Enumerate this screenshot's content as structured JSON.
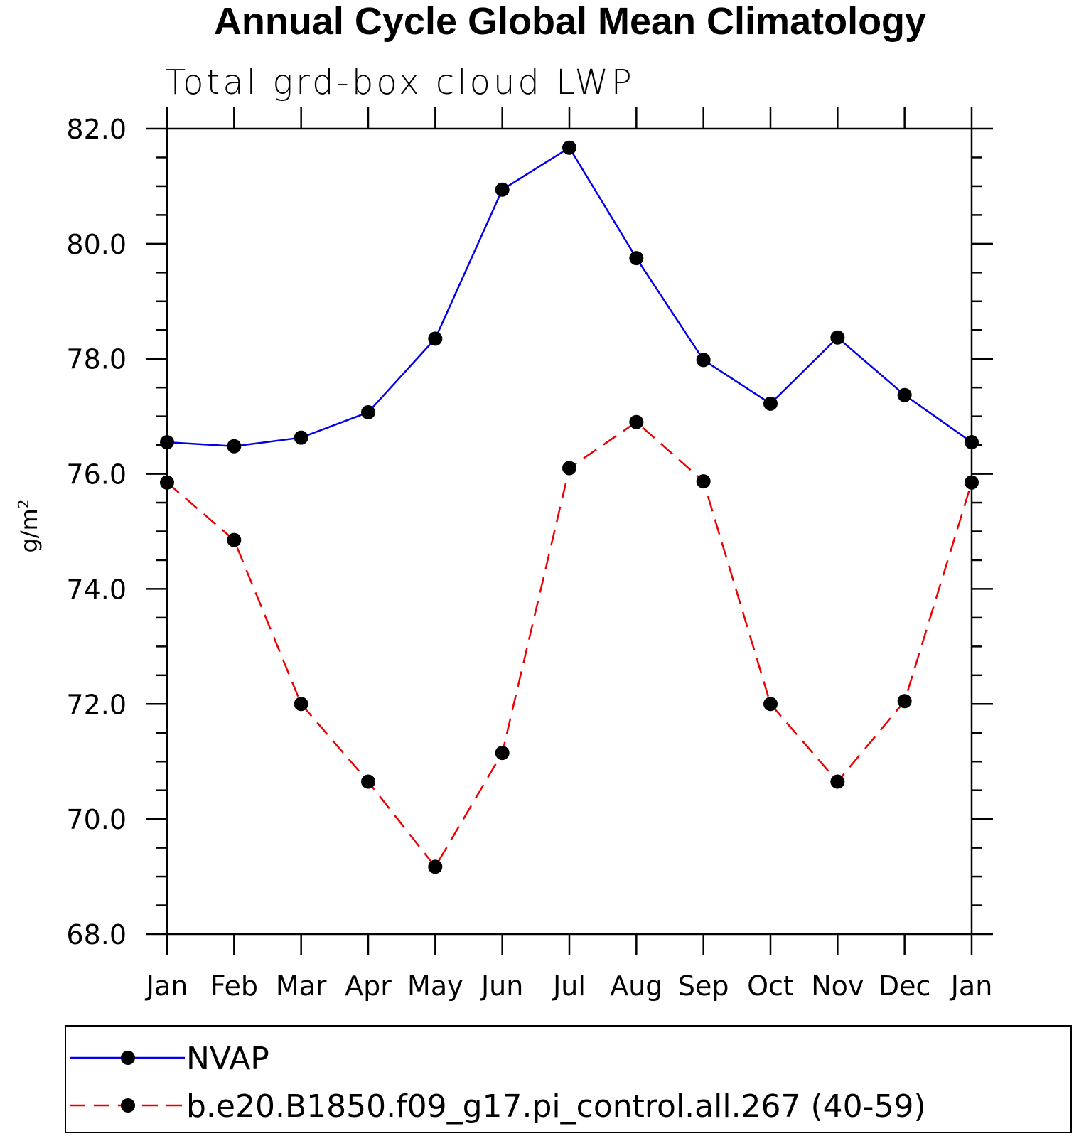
{
  "chart_data": {
    "type": "line",
    "title": "Annual Cycle Global Mean Climatology",
    "subtitle": "Total grd-box cloud LWP",
    "xlabel": "",
    "ylabel": "g/m",
    "ylabel_superscript": "2",
    "categories": [
      "Jan",
      "Feb",
      "Mar",
      "Apr",
      "May",
      "Jun",
      "Jul",
      "Aug",
      "Sep",
      "Oct",
      "Nov",
      "Dec",
      "Jan"
    ],
    "ylim": [
      68.0,
      82.0
    ],
    "yticks": [
      "68.0",
      "70.0",
      "72.0",
      "74.0",
      "76.0",
      "78.0",
      "80.0",
      "82.0"
    ],
    "yminor_step": 0.5,
    "grid": false,
    "legend_position": "bottom",
    "series": [
      {
        "name": "NVAP",
        "color": "#0000ee",
        "dash": "solid",
        "marker": "filled-circle",
        "values": [
          76.55,
          76.48,
          76.63,
          77.07,
          78.35,
          80.94,
          81.67,
          79.75,
          77.98,
          77.22,
          78.37,
          77.37,
          76.55
        ]
      },
      {
        "name": "b.e20.B1850.f09_g17.pi_control.all.267 (40-59)",
        "color": "#ee0000",
        "dash": "dashed",
        "marker": "filled-circle",
        "values": [
          75.85,
          74.85,
          72.0,
          70.65,
          69.17,
          71.15,
          76.1,
          76.9,
          75.87,
          72.0,
          70.65,
          72.05,
          75.85
        ]
      }
    ]
  }
}
